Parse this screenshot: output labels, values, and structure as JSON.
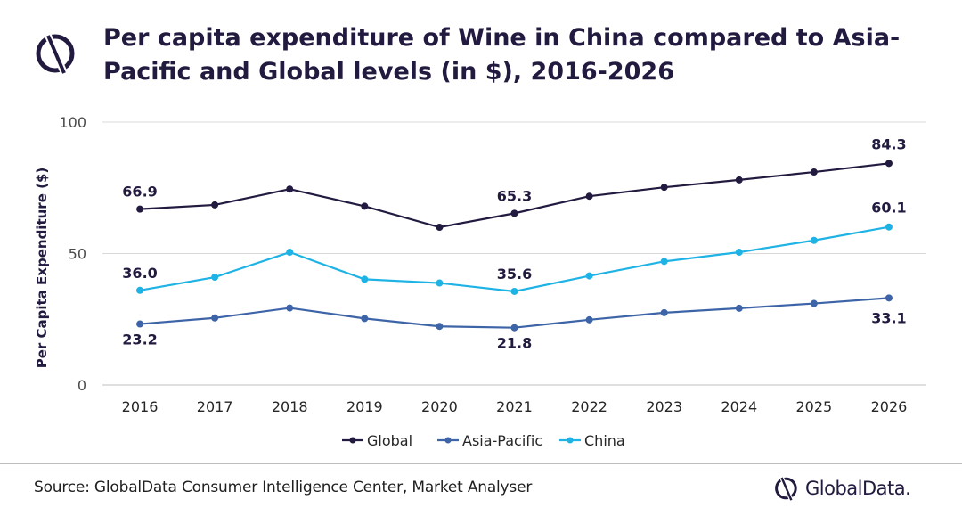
{
  "header": {
    "title": "Per capita expenditure of Wine in China compared to Asia-Pacific and Global levels (in $), 2016-2026",
    "logo_icon": "globaldata-logo-icon"
  },
  "footer": {
    "source": "Source: GlobalData Consumer Intelligence Center, Market Analyser",
    "brand": "GlobalData."
  },
  "colors": {
    "global": "#231a3f",
    "asia_pacific": "#3e64a8",
    "china": "#1fb3e5",
    "grid": "#d9d9d9",
    "text": "#231a3f"
  },
  "chart_data": {
    "type": "line",
    "title": "Per capita expenditure of Wine in China compared to Asia-Pacific and Global levels (in $), 2016-2026",
    "xlabel": "",
    "ylabel": "Per Capita Expenditure ($)",
    "ylim": [
      0,
      100
    ],
    "yticks": [
      0,
      50,
      100
    ],
    "grid": true,
    "legend_position": "bottom",
    "categories": [
      "2016",
      "2017",
      "2018",
      "2019",
      "2020",
      "2021",
      "2022",
      "2023",
      "2024",
      "2025",
      "2026"
    ],
    "series": [
      {
        "name": "Global",
        "values": [
          66.9,
          68.5,
          74.5,
          68.0,
          60.0,
          65.3,
          71.8,
          75.2,
          78.0,
          81.0,
          84.3
        ],
        "labels": {
          "0": "66.9",
          "5": "65.3",
          "10": "84.3"
        }
      },
      {
        "name": "Asia-Pacific",
        "values": [
          23.2,
          25.5,
          29.3,
          25.3,
          22.3,
          21.8,
          24.8,
          27.5,
          29.2,
          31.0,
          33.1
        ],
        "labels": {
          "0": "23.2",
          "5": "21.8",
          "10": "33.1"
        }
      },
      {
        "name": "China",
        "values": [
          36.0,
          41.0,
          50.5,
          40.2,
          38.8,
          35.6,
          41.5,
          47.0,
          50.5,
          55.0,
          60.1
        ],
        "labels": {
          "0": "36.0",
          "5": "35.6",
          "10": "60.1"
        }
      }
    ]
  }
}
